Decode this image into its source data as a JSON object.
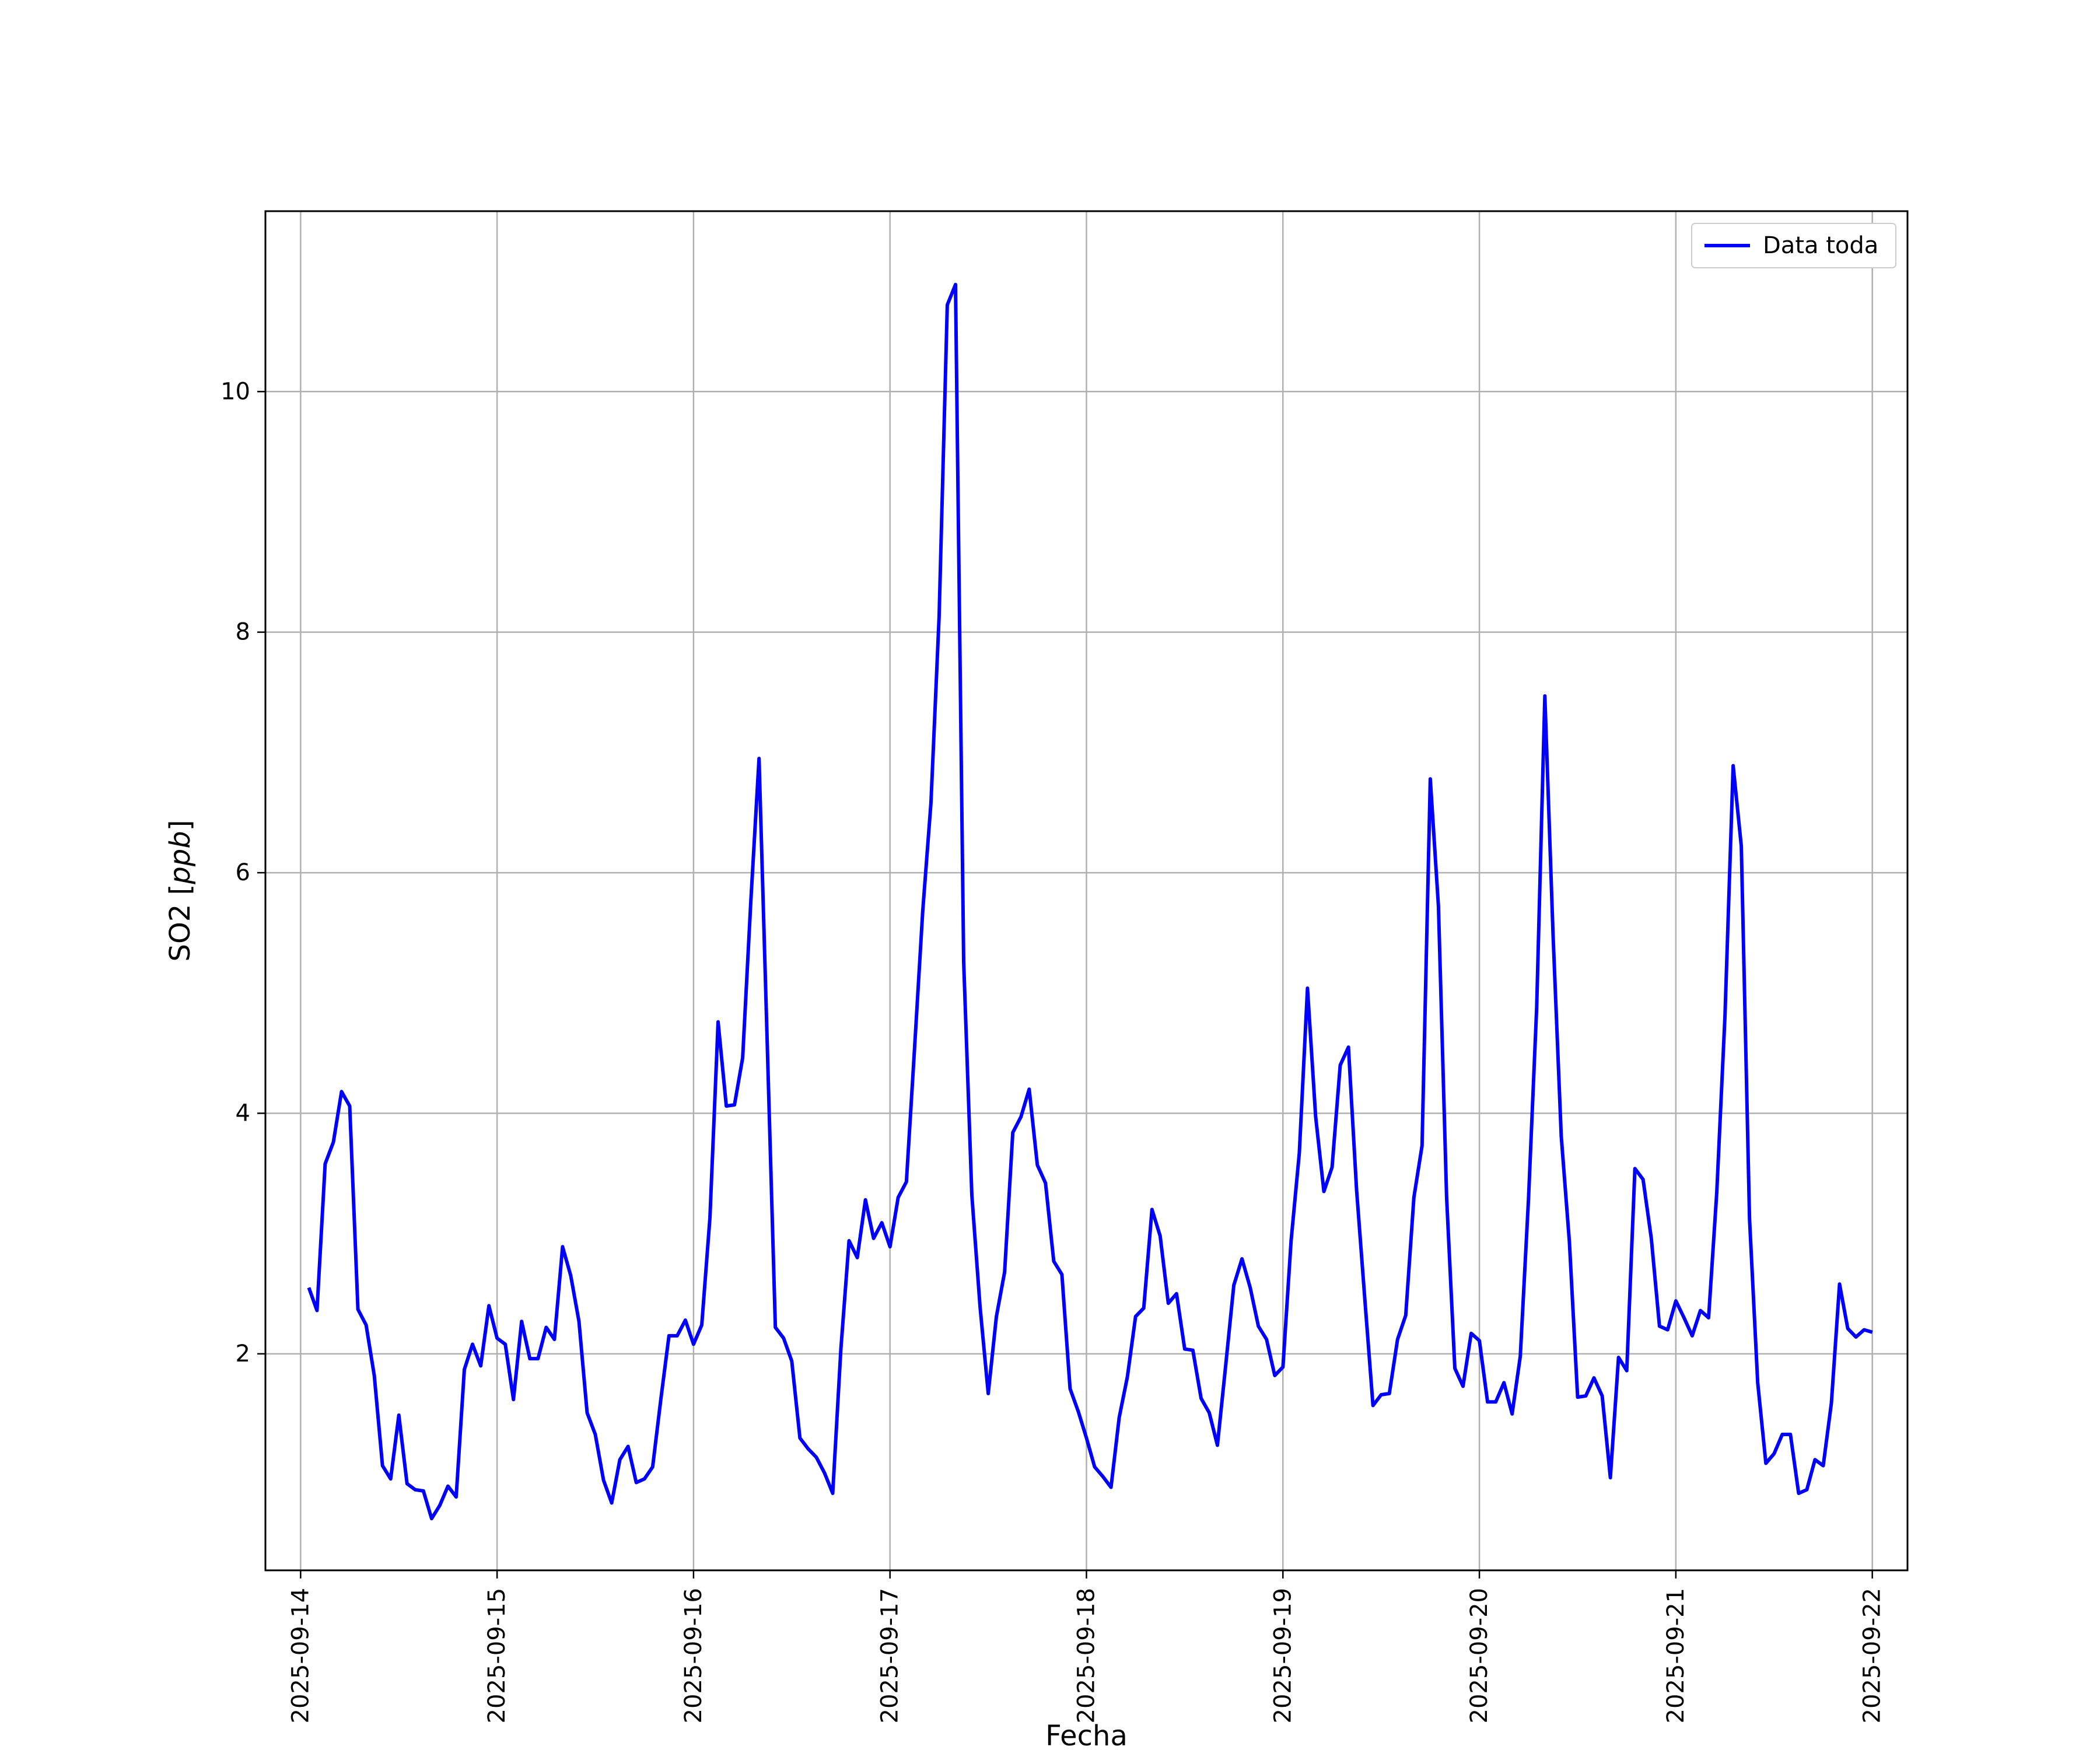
{
  "chart_data": {
    "type": "line",
    "title": "",
    "xlabel": "Fecha",
    "ylabel": "SO2 [ppb]",
    "ylabel_parts": {
      "prefix": "SO2 [",
      "unit": "ppb",
      "suffix": "]"
    },
    "xlim": [
      "2025-09-13T19:42",
      "2025-09-22T04:18"
    ],
    "ylim": [
      0.2,
      11.5
    ],
    "grid": true,
    "legend_position": "top-right",
    "x_ticks": [
      "2025-09-14",
      "2025-09-15",
      "2025-09-16",
      "2025-09-17",
      "2025-09-18",
      "2025-09-19",
      "2025-09-20",
      "2025-09-21",
      "2025-09-22"
    ],
    "y_ticks": [
      2,
      4,
      6,
      8,
      10
    ],
    "series": [
      {
        "name": "Data toda",
        "color": "#0000ff",
        "points": [
          [
            "2025-09-14T01:00",
            2.55
          ],
          [
            "2025-09-14T02:00",
            2.36
          ],
          [
            "2025-09-14T03:00",
            3.58
          ],
          [
            "2025-09-14T04:00",
            3.76
          ],
          [
            "2025-09-14T05:00",
            4.18
          ],
          [
            "2025-09-14T06:00",
            4.06
          ],
          [
            "2025-09-14T07:00",
            2.37
          ],
          [
            "2025-09-14T08:00",
            2.24
          ],
          [
            "2025-09-14T09:00",
            1.82
          ],
          [
            "2025-09-14T10:00",
            1.07
          ],
          [
            "2025-09-14T11:00",
            0.96
          ],
          [
            "2025-09-14T12:00",
            1.49
          ],
          [
            "2025-09-14T13:00",
            0.92
          ],
          [
            "2025-09-14T14:00",
            0.87
          ],
          [
            "2025-09-14T15:00",
            0.86
          ],
          [
            "2025-09-14T16:00",
            0.63
          ],
          [
            "2025-09-14T17:00",
            0.74
          ],
          [
            "2025-09-14T18:00",
            0.9
          ],
          [
            "2025-09-14T19:00",
            0.81
          ],
          [
            "2025-09-14T20:00",
            1.87
          ],
          [
            "2025-09-14T21:00",
            2.08
          ],
          [
            "2025-09-14T22:00",
            1.9
          ],
          [
            "2025-09-14T23:00",
            2.4
          ],
          [
            "2025-09-15T00:00",
            2.13
          ],
          [
            "2025-09-15T01:00",
            2.08
          ],
          [
            "2025-09-15T02:00",
            1.62
          ],
          [
            "2025-09-15T03:00",
            2.27
          ],
          [
            "2025-09-15T04:00",
            1.96
          ],
          [
            "2025-09-15T05:00",
            1.96
          ],
          [
            "2025-09-15T06:00",
            2.22
          ],
          [
            "2025-09-15T07:00",
            2.12
          ],
          [
            "2025-09-15T08:00",
            2.89
          ],
          [
            "2025-09-15T09:00",
            2.65
          ],
          [
            "2025-09-15T10:00",
            2.27
          ],
          [
            "2025-09-15T11:00",
            1.51
          ],
          [
            "2025-09-15T12:00",
            1.33
          ],
          [
            "2025-09-15T13:00",
            0.95
          ],
          [
            "2025-09-15T14:00",
            0.76
          ],
          [
            "2025-09-15T15:00",
            1.12
          ],
          [
            "2025-09-15T16:00",
            1.23
          ],
          [
            "2025-09-15T17:00",
            0.93
          ],
          [
            "2025-09-15T18:00",
            0.96
          ],
          [
            "2025-09-15T19:00",
            1.06
          ],
          [
            "2025-09-15T20:00",
            1.62
          ],
          [
            "2025-09-15T21:00",
            2.15
          ],
          [
            "2025-09-15T22:00",
            2.15
          ],
          [
            "2025-09-15T23:00",
            2.28
          ],
          [
            "2025-09-16T00:00",
            2.08
          ],
          [
            "2025-09-16T01:00",
            2.24
          ],
          [
            "2025-09-16T02:00",
            3.13
          ],
          [
            "2025-09-16T03:00",
            4.76
          ],
          [
            "2025-09-16T04:00",
            4.06
          ],
          [
            "2025-09-16T05:00",
            4.07
          ],
          [
            "2025-09-16T06:00",
            4.46
          ],
          [
            "2025-09-16T07:00",
            5.77
          ],
          [
            "2025-09-16T08:00",
            6.95
          ],
          [
            "2025-09-16T09:00",
            4.59
          ],
          [
            "2025-09-16T10:00",
            2.22
          ],
          [
            "2025-09-16T11:00",
            2.13
          ],
          [
            "2025-09-16T12:00",
            1.94
          ],
          [
            "2025-09-16T13:00",
            1.3
          ],
          [
            "2025-09-16T14:00",
            1.21
          ],
          [
            "2025-09-16T15:00",
            1.14
          ],
          [
            "2025-09-16T16:00",
            1.01
          ],
          [
            "2025-09-16T17:00",
            0.84
          ],
          [
            "2025-09-16T18:00",
            2.04
          ],
          [
            "2025-09-16T19:00",
            2.94
          ],
          [
            "2025-09-16T20:00",
            2.8
          ],
          [
            "2025-09-16T21:00",
            3.28
          ],
          [
            "2025-09-16T22:00",
            2.96
          ],
          [
            "2025-09-16T23:00",
            3.09
          ],
          [
            "2025-09-17T00:00",
            2.89
          ],
          [
            "2025-09-17T01:00",
            3.3
          ],
          [
            "2025-09-17T02:00",
            3.43
          ],
          [
            "2025-09-17T03:00",
            4.54
          ],
          [
            "2025-09-17T04:00",
            5.68
          ],
          [
            "2025-09-17T05:00",
            6.58
          ],
          [
            "2025-09-17T06:00",
            8.13
          ],
          [
            "2025-09-17T07:00",
            10.72
          ],
          [
            "2025-09-17T08:00",
            10.89
          ],
          [
            "2025-09-17T09:00",
            5.26
          ],
          [
            "2025-09-17T10:00",
            3.32
          ],
          [
            "2025-09-17T11:00",
            2.39
          ],
          [
            "2025-09-17T12:00",
            1.67
          ],
          [
            "2025-09-17T13:00",
            2.31
          ],
          [
            "2025-09-17T14:00",
            2.68
          ],
          [
            "2025-09-17T15:00",
            3.84
          ],
          [
            "2025-09-17T16:00",
            3.97
          ],
          [
            "2025-09-17T17:00",
            4.2
          ],
          [
            "2025-09-17T18:00",
            3.57
          ],
          [
            "2025-09-17T19:00",
            3.42
          ],
          [
            "2025-09-17T20:00",
            2.77
          ],
          [
            "2025-09-17T21:00",
            2.66
          ],
          [
            "2025-09-17T22:00",
            1.71
          ],
          [
            "2025-09-17T23:00",
            1.52
          ],
          [
            "2025-09-18T00:00",
            1.3
          ],
          [
            "2025-09-18T01:00",
            1.06
          ],
          [
            "2025-09-18T02:00",
            0.98
          ],
          [
            "2025-09-18T03:00",
            0.89
          ],
          [
            "2025-09-18T04:00",
            1.47
          ],
          [
            "2025-09-18T05:00",
            1.81
          ],
          [
            "2025-09-18T06:00",
            2.31
          ],
          [
            "2025-09-18T07:00",
            2.38
          ],
          [
            "2025-09-18T08:00",
            3.2
          ],
          [
            "2025-09-18T09:00",
            2.98
          ],
          [
            "2025-09-18T10:00",
            2.42
          ],
          [
            "2025-09-18T11:00",
            2.5
          ],
          [
            "2025-09-18T12:00",
            2.04
          ],
          [
            "2025-09-18T13:00",
            2.03
          ],
          [
            "2025-09-18T14:00",
            1.63
          ],
          [
            "2025-09-18T15:00",
            1.51
          ],
          [
            "2025-09-18T16:00",
            1.24
          ],
          [
            "2025-09-18T17:00",
            1.9
          ],
          [
            "2025-09-18T18:00",
            2.57
          ],
          [
            "2025-09-18T19:00",
            2.79
          ],
          [
            "2025-09-18T20:00",
            2.55
          ],
          [
            "2025-09-18T21:00",
            2.23
          ],
          [
            "2025-09-18T22:00",
            2.12
          ],
          [
            "2025-09-18T23:00",
            1.82
          ],
          [
            "2025-09-19T00:00",
            1.89
          ],
          [
            "2025-09-19T01:00",
            2.94
          ],
          [
            "2025-09-19T02:00",
            3.67
          ],
          [
            "2025-09-19T03:00",
            5.04
          ],
          [
            "2025-09-19T04:00",
            3.97
          ],
          [
            "2025-09-19T05:00",
            3.35
          ],
          [
            "2025-09-19T06:00",
            3.55
          ],
          [
            "2025-09-19T07:00",
            4.4
          ],
          [
            "2025-09-19T08:00",
            4.55
          ],
          [
            "2025-09-19T09:00",
            3.36
          ],
          [
            "2025-09-19T10:00",
            2.46
          ],
          [
            "2025-09-19T11:00",
            1.57
          ],
          [
            "2025-09-19T12:00",
            1.66
          ],
          [
            "2025-09-19T13:00",
            1.67
          ],
          [
            "2025-09-19T14:00",
            2.12
          ],
          [
            "2025-09-19T15:00",
            2.32
          ],
          [
            "2025-09-19T16:00",
            3.3
          ],
          [
            "2025-09-19T17:00",
            3.73
          ],
          [
            "2025-09-19T18:00",
            6.78
          ],
          [
            "2025-09-19T19:00",
            5.72
          ],
          [
            "2025-09-19T20:00",
            3.3
          ],
          [
            "2025-09-19T21:00",
            1.88
          ],
          [
            "2025-09-19T22:00",
            1.73
          ],
          [
            "2025-09-19T23:00",
            2.17
          ],
          [
            "2025-09-20T00:00",
            2.11
          ],
          [
            "2025-09-20T01:00",
            1.6
          ],
          [
            "2025-09-20T02:00",
            1.6
          ],
          [
            "2025-09-20T03:00",
            1.76
          ],
          [
            "2025-09-20T04:00",
            1.5
          ],
          [
            "2025-09-20T05:00",
            1.98
          ],
          [
            "2025-09-20T06:00",
            3.29
          ],
          [
            "2025-09-20T07:00",
            4.88
          ],
          [
            "2025-09-20T08:00",
            7.47
          ],
          [
            "2025-09-20T09:00",
            5.48
          ],
          [
            "2025-09-20T10:00",
            3.81
          ],
          [
            "2025-09-20T11:00",
            2.93
          ],
          [
            "2025-09-20T12:00",
            1.64
          ],
          [
            "2025-09-20T13:00",
            1.65
          ],
          [
            "2025-09-20T14:00",
            1.8
          ],
          [
            "2025-09-20T15:00",
            1.65
          ],
          [
            "2025-09-20T16:00",
            0.97
          ],
          [
            "2025-09-20T17:00",
            1.97
          ],
          [
            "2025-09-20T18:00",
            1.86
          ],
          [
            "2025-09-20T19:00",
            3.54
          ],
          [
            "2025-09-20T20:00",
            3.45
          ],
          [
            "2025-09-20T21:00",
            2.96
          ],
          [
            "2025-09-20T22:00",
            2.23
          ],
          [
            "2025-09-20T23:00",
            2.2
          ],
          [
            "2025-09-21T00:00",
            2.44
          ],
          [
            "2025-09-21T01:00",
            2.3
          ],
          [
            "2025-09-21T02:00",
            2.15
          ],
          [
            "2025-09-21T03:00",
            2.36
          ],
          [
            "2025-09-21T04:00",
            2.3
          ],
          [
            "2025-09-21T05:00",
            3.34
          ],
          [
            "2025-09-21T06:00",
            4.81
          ],
          [
            "2025-09-21T07:00",
            6.89
          ],
          [
            "2025-09-21T08:00",
            6.22
          ],
          [
            "2025-09-21T09:00",
            3.12
          ],
          [
            "2025-09-21T10:00",
            1.76
          ],
          [
            "2025-09-21T11:00",
            1.09
          ],
          [
            "2025-09-21T12:00",
            1.17
          ],
          [
            "2025-09-21T13:00",
            1.33
          ],
          [
            "2025-09-21T14:00",
            1.33
          ],
          [
            "2025-09-21T15:00",
            0.84
          ],
          [
            "2025-09-21T16:00",
            0.87
          ],
          [
            "2025-09-21T17:00",
            1.12
          ],
          [
            "2025-09-21T18:00",
            1.07
          ],
          [
            "2025-09-21T19:00",
            1.59
          ],
          [
            "2025-09-21T20:00",
            2.58
          ],
          [
            "2025-09-21T21:00",
            2.21
          ],
          [
            "2025-09-21T22:00",
            2.14
          ],
          [
            "2025-09-21T23:00",
            2.2
          ],
          [
            "2025-09-22T00:00",
            2.18
          ]
        ]
      }
    ]
  }
}
